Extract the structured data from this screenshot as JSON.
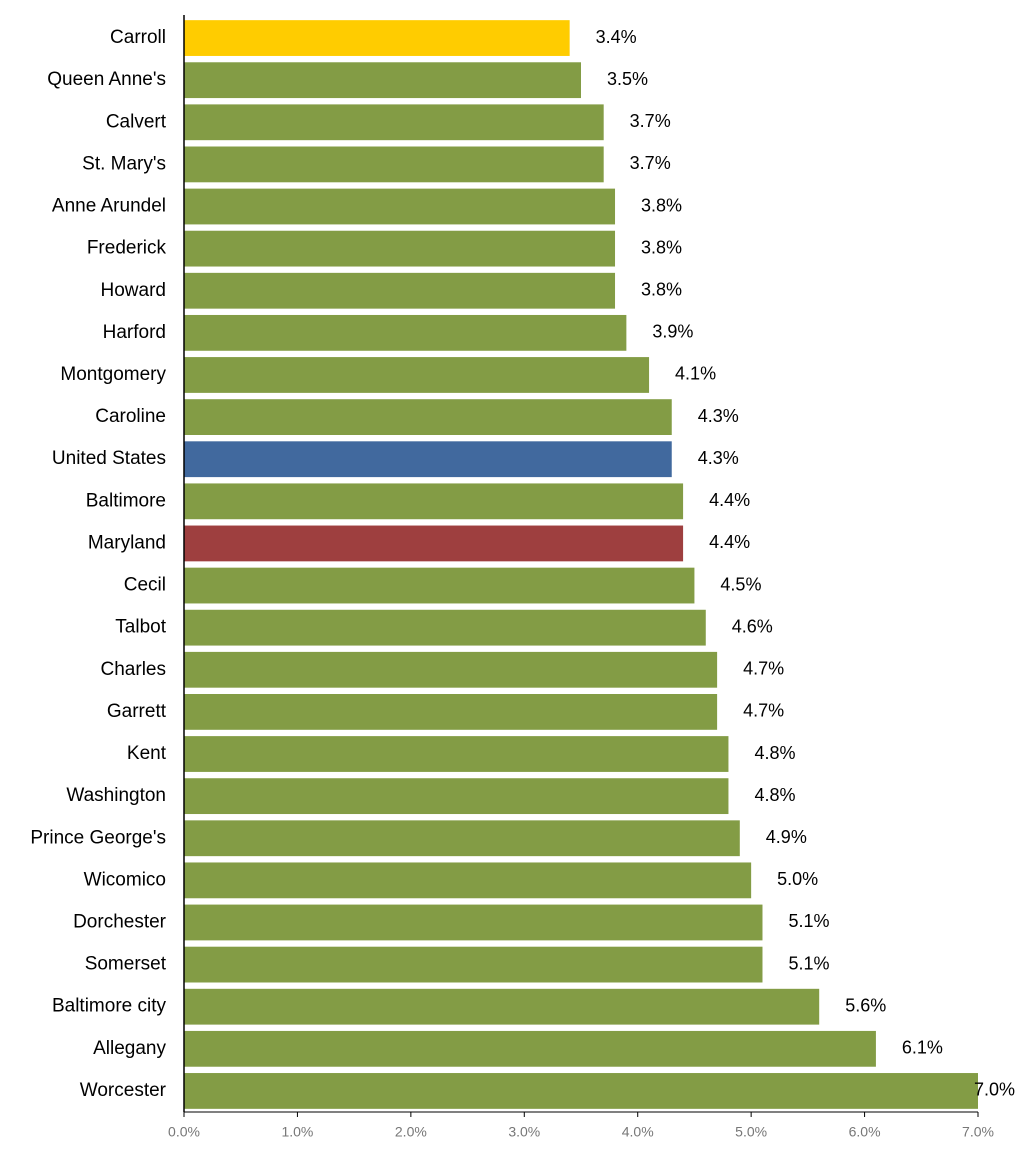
{
  "chart_data": {
    "type": "hbar",
    "categories": [
      "Carroll",
      "Queen Anne's",
      "Calvert",
      "St. Mary's",
      "Anne Arundel",
      "Frederick",
      "Howard",
      "Harford",
      "Montgomery",
      "Caroline",
      "United States",
      "Baltimore",
      "Maryland",
      "Cecil",
      "Talbot",
      "Charles",
      "Garrett",
      "Kent",
      "Washington",
      "Prince George's",
      "Wicomico",
      "Dorchester",
      "Somerset",
      "Baltimore city",
      "Allegany",
      "Worcester"
    ],
    "values": [
      3.4,
      3.5,
      3.7,
      3.7,
      3.8,
      3.8,
      3.8,
      3.9,
      4.1,
      4.3,
      4.3,
      4.4,
      4.4,
      4.5,
      4.6,
      4.7,
      4.7,
      4.8,
      4.8,
      4.9,
      5.0,
      5.1,
      5.1,
      5.6,
      6.1,
      7.0
    ],
    "value_labels": [
      "3.4%",
      "3.5%",
      "3.7%",
      "3.7%",
      "3.8%",
      "3.8%",
      "3.8%",
      "3.9%",
      "4.1%",
      "4.3%",
      "4.3%",
      "4.4%",
      "4.4%",
      "4.5%",
      "4.6%",
      "4.7%",
      "4.7%",
      "4.8%",
      "4.8%",
      "4.9%",
      "5.0%",
      "5.1%",
      "5.1%",
      "5.6%",
      "6.1%",
      "7.0%"
    ],
    "colors": [
      "#ffcc00",
      "#839c45",
      "#839c45",
      "#839c45",
      "#839c45",
      "#839c45",
      "#839c45",
      "#839c45",
      "#839c45",
      "#839c45",
      "#41699e",
      "#839c45",
      "#9e3f3f",
      "#839c45",
      "#839c45",
      "#839c45",
      "#839c45",
      "#839c45",
      "#839c45",
      "#839c45",
      "#839c45",
      "#839c45",
      "#839c45",
      "#839c45",
      "#839c45",
      "#839c45"
    ],
    "xlim": [
      0,
      7
    ],
    "xticks": [
      {
        "value": 0,
        "label": "0.0%"
      },
      {
        "value": 1,
        "label": "1.0%"
      },
      {
        "value": 2,
        "label": "2.0%"
      },
      {
        "value": 3,
        "label": "3.0%"
      },
      {
        "value": 4,
        "label": "4.0%"
      },
      {
        "value": 5,
        "label": "5.0%"
      },
      {
        "value": 6,
        "label": "6.0%"
      },
      {
        "value": 7,
        "label": "7.0%"
      }
    ]
  }
}
